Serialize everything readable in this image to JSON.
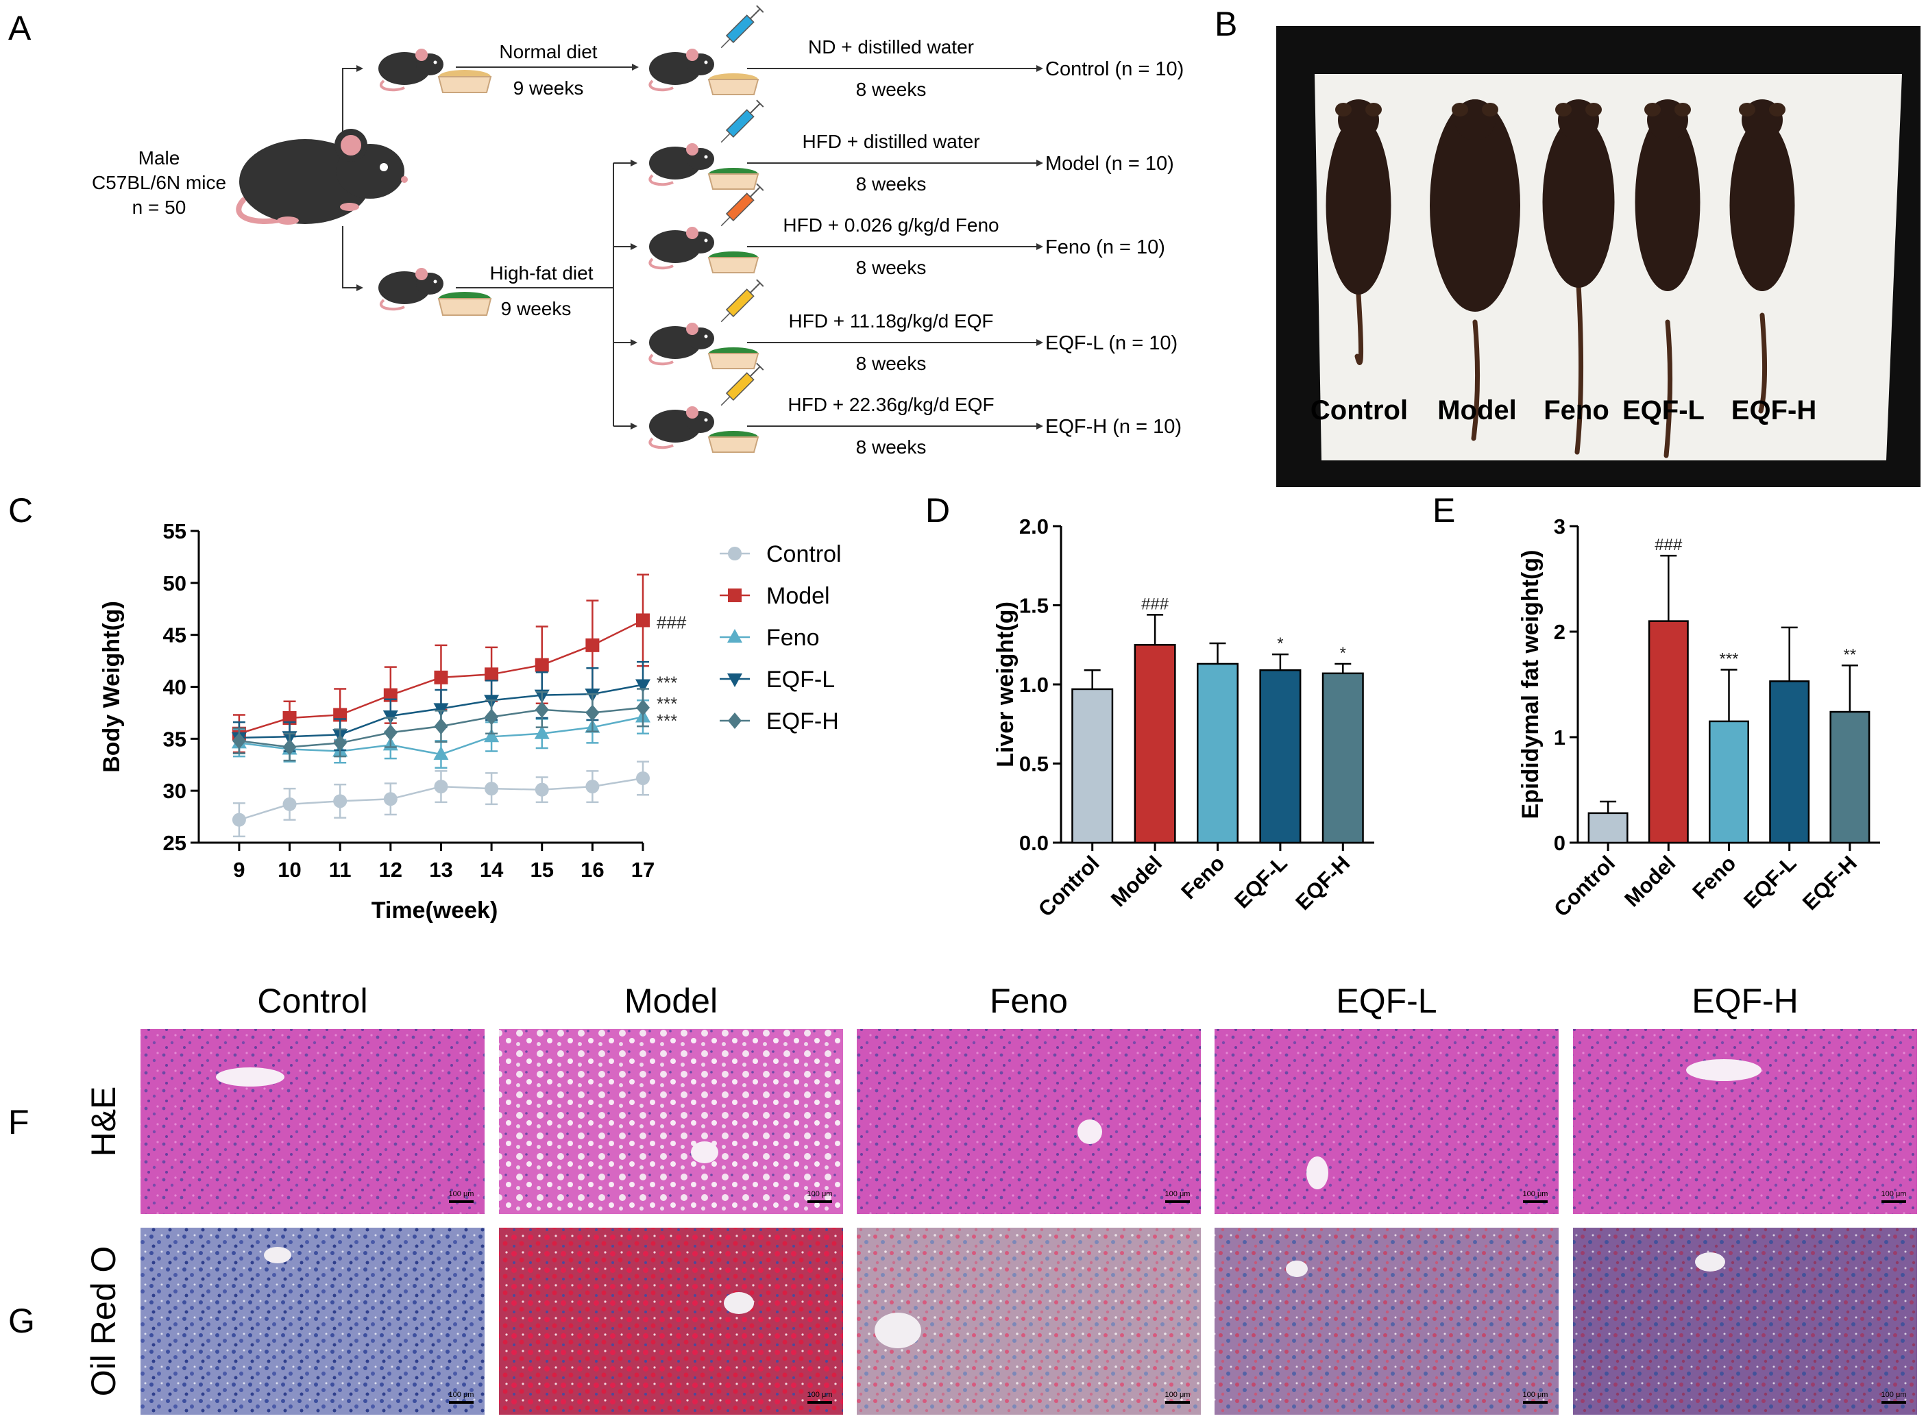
{
  "panel_letters": {
    "a": "A",
    "b": "B",
    "c": "C",
    "d": "D",
    "e": "E",
    "f": "F",
    "g": "G"
  },
  "design": {
    "start": {
      "line1": "Male",
      "line2": "C57BL/6N mice",
      "line3": "n = 50"
    },
    "normal": {
      "diet": "Normal diet",
      "time": "9 weeks"
    },
    "hfd": {
      "diet": "High-fat diet",
      "time": "9 weeks"
    },
    "arms": [
      {
        "treatment": "ND + distilled water",
        "duration": "8 weeks",
        "group": "Control (n = 10)",
        "syringe": "#2aa7dd",
        "food": "#e8c077"
      },
      {
        "treatment": "HFD + distilled water",
        "duration": "8 weeks",
        "group": "Model (n = 10)",
        "syringe": "#2aa7dd",
        "food": "#2f8a3a"
      },
      {
        "treatment": "HFD + 0.026 g/kg/d Feno",
        "duration": "8 weeks",
        "group": "Feno (n = 10)",
        "syringe": "#f07030",
        "food": "#2f8a3a"
      },
      {
        "treatment": "HFD + 11.18g/kg/d EQF",
        "duration": "8 weeks",
        "group": "EQF-L (n = 10)",
        "syringe": "#f5c02a",
        "food": "#2f8a3a"
      },
      {
        "treatment": "HFD + 22.36g/kg/d EQF",
        "duration": "8 weeks",
        "group": "EQF-H (n = 10)",
        "syringe": "#f5c02a",
        "food": "#2f8a3a"
      }
    ]
  },
  "photo": {
    "labels": [
      "Control",
      "Model",
      "Feno",
      "EQF-L",
      "EQF-H"
    ]
  },
  "histology": {
    "columns": [
      "Control",
      "Model",
      "Feno",
      "EQF-L",
      "EQF-H"
    ],
    "rows": [
      "H&E",
      "Oil Red O"
    ],
    "scale_bar": "100 μm"
  },
  "colors": {
    "Control": "#b7c6d2",
    "Model": "#c23230",
    "Feno": "#5aaec8",
    "EQF-L": "#155a80",
    "EQF-H": "#4e7a87"
  },
  "chart_data": [
    {
      "type": "line",
      "ylabel": "Body Weight(g)",
      "xlabel": "Time(week)",
      "x": [
        9,
        10,
        11,
        12,
        13,
        14,
        15,
        16,
        17
      ],
      "ylim": [
        25,
        55
      ],
      "yticks": [
        25,
        30,
        35,
        40,
        45,
        50,
        55
      ],
      "legend_position": "right",
      "series": [
        {
          "name": "Control",
          "values": [
            27.2,
            28.7,
            29.0,
            29.2,
            30.4,
            30.2,
            30.1,
            30.4,
            31.2
          ],
          "err": [
            1.6,
            1.5,
            1.6,
            1.5,
            1.5,
            1.5,
            1.2,
            1.5,
            1.6
          ],
          "marker": "circle",
          "color": "#b7c6d2",
          "annot": ""
        },
        {
          "name": "Model",
          "values": [
            35.5,
            37.0,
            37.3,
            39.2,
            40.9,
            41.2,
            42.1,
            44.0,
            46.4
          ],
          "err": [
            1.8,
            1.6,
            2.5,
            2.7,
            3.1,
            2.6,
            3.7,
            4.3,
            4.4
          ],
          "marker": "square",
          "color": "#c23230",
          "annot": "###"
        },
        {
          "name": "Feno",
          "values": [
            34.6,
            34.0,
            33.8,
            34.4,
            33.5,
            35.2,
            35.5,
            36.1,
            37.1
          ],
          "err": [
            1.3,
            1.2,
            1.1,
            1.3,
            1.3,
            1.4,
            1.4,
            1.5,
            1.6
          ],
          "marker": "triangle",
          "color": "#5aaec8",
          "annot": "***"
        },
        {
          "name": "EQF-L",
          "values": [
            35.1,
            35.2,
            35.4,
            37.2,
            37.9,
            38.7,
            39.2,
            39.3,
            40.2
          ],
          "err": [
            1.5,
            1.4,
            1.5,
            1.6,
            1.8,
            1.9,
            2.2,
            2.5,
            2.2
          ],
          "marker": "triangle-down",
          "color": "#155a80",
          "annot": "***"
        },
        {
          "name": "EQF-H",
          "values": [
            34.8,
            34.2,
            34.6,
            35.6,
            36.2,
            37.1,
            37.8,
            37.5,
            38.0
          ],
          "err": [
            1.2,
            1.3,
            1.3,
            1.4,
            1.5,
            1.6,
            1.7,
            1.8,
            1.8
          ],
          "marker": "diamond",
          "color": "#4e7a87",
          "annot": "***"
        }
      ]
    },
    {
      "type": "bar",
      "ylabel": "Liver weight(g)",
      "categories": [
        "Control",
        "Model",
        "Feno",
        "EQF-L",
        "EQF-H"
      ],
      "values": [
        0.97,
        1.25,
        1.13,
        1.09,
        1.07
      ],
      "err": [
        0.12,
        0.19,
        0.13,
        0.1,
        0.06
      ],
      "annot": [
        "",
        "###",
        "",
        "*",
        "*"
      ],
      "ylim": [
        0,
        2.0
      ],
      "yticks": [
        "0.0",
        "0.5",
        "1.0",
        "1.5",
        "2.0"
      ]
    },
    {
      "type": "bar",
      "ylabel": "Epididymal fat weight(g)",
      "categories": [
        "Control",
        "Model",
        "Feno",
        "EQF-L",
        "EQF-H"
      ],
      "values": [
        0.28,
        2.1,
        1.15,
        1.53,
        1.24
      ],
      "err": [
        0.11,
        0.62,
        0.49,
        0.51,
        0.44
      ],
      "annot": [
        "",
        "###",
        "***",
        "",
        "**"
      ],
      "ylim": [
        0,
        3
      ],
      "yticks": [
        "0",
        "1",
        "2",
        "3"
      ]
    }
  ]
}
